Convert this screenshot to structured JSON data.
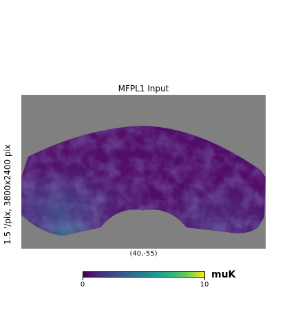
{
  "figure": {
    "title": "MFPL1 Input",
    "side_label": "1.5 '/pix,   3800x2400 pix",
    "center_label": "(40,-55)"
  },
  "colorbar": {
    "min_label": "0",
    "max_label": "10",
    "unit": "muK",
    "colormap": "viridis",
    "range": [
      0,
      10
    ]
  },
  "colors": {
    "background_mask": "#808080",
    "map_low": "#440154",
    "map_mid": "#21918c",
    "map_high": "#fde725"
  }
}
